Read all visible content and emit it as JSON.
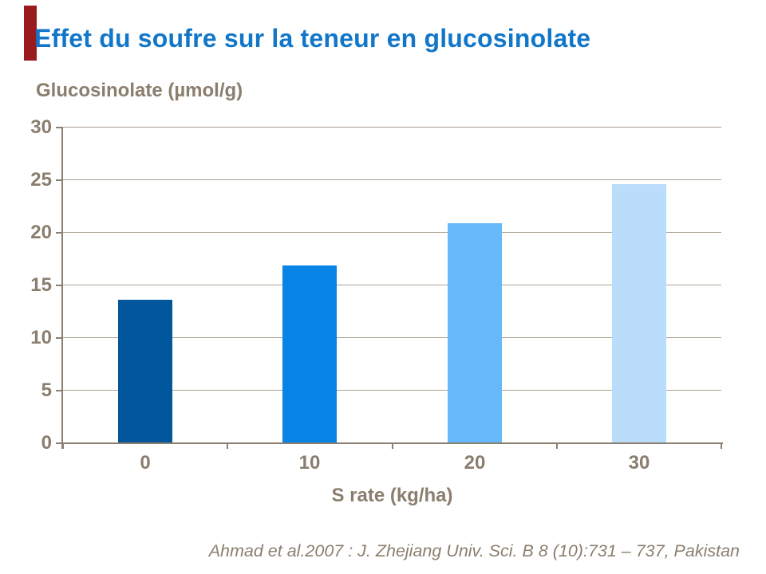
{
  "slide": {
    "title": "Effet du soufre sur la teneur en glucosinolate",
    "title_color": "#1277C9",
    "accent_bar_color": "#9A1B1E",
    "text_color": "#8A7E6E",
    "citation": "Ahmad et al.2007 : J. Zhejiang Univ. Sci. B 8 (10):731 – 737, Pakistan"
  },
  "chart_data": {
    "type": "bar",
    "title": "Glucosinolate (µmol/g)",
    "xlabel": "S rate (kg/ha)",
    "ylabel": "Glucosinolate (µmol/g)",
    "categories": [
      "0",
      "10",
      "20",
      "30"
    ],
    "values": [
      13.6,
      16.9,
      20.9,
      24.6
    ],
    "bar_colors": [
      "#02569B",
      "#0883E6",
      "#67BAFA",
      "#B9DDFB"
    ],
    "ylim": [
      0,
      30
    ],
    "yticks": [
      0,
      5,
      10,
      15,
      20,
      25,
      30
    ],
    "grid": true,
    "gridline_color": "#ACA196",
    "axis_color": "#8A7F70",
    "legend": "none"
  }
}
